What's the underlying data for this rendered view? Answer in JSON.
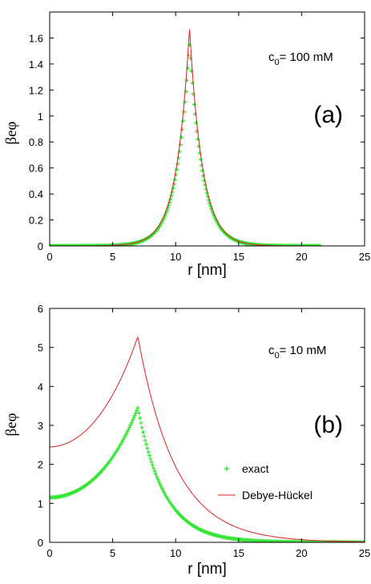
{
  "chart_data": [
    {
      "type": "line",
      "panel_label": "(a)",
      "annotation": {
        "prefix": "c",
        "subscript": "0",
        "text": "= 100 mM"
      },
      "xlabel": "r [nm]",
      "ylabel": "βeφ",
      "xlim": [
        0,
        25
      ],
      "ylim": [
        0,
        1.8
      ],
      "xticks": [
        0,
        5,
        10,
        15,
        20,
        25
      ],
      "xtick_labels": [
        "0",
        "5",
        "10",
        "15",
        "20",
        "25"
      ],
      "yticks": [
        0,
        0.2,
        0.4,
        0.6,
        0.8,
        1,
        1.2,
        1.4,
        1.6
      ],
      "ytick_labels": [
        "0",
        "0.2",
        "0.4",
        "0.6",
        "0.8",
        "1",
        "1.2",
        "1.4",
        "1.6"
      ],
      "series": [
        {
          "key": "exact",
          "model": "peak",
          "x_start": 0,
          "x_end": 21.5,
          "peak_x": 11.1,
          "peak_y": 1.56,
          "left_length": 1.02,
          "right_length": 1.02,
          "color": "#33e633",
          "marker": "+"
        },
        {
          "key": "debye_huckel",
          "model": "peak",
          "x_start": 0,
          "x_end": 21.5,
          "peak_x": 11.1,
          "peak_y": 1.68,
          "left_length": 1.02,
          "right_length": 1.02,
          "color": "#dd2222",
          "marker": "line"
        }
      ]
    },
    {
      "type": "line",
      "panel_label": "(b)",
      "annotation": {
        "prefix": "c",
        "subscript": "0",
        "text": "= 10 mM"
      },
      "xlabel": "r [nm]",
      "ylabel": "βeφ",
      "xlim": [
        0,
        25
      ],
      "ylim": [
        0,
        6
      ],
      "xticks": [
        0,
        5,
        10,
        15,
        20,
        25
      ],
      "xtick_labels": [
        "0",
        "5",
        "10",
        "15",
        "20",
        "25"
      ],
      "yticks": [
        0,
        1,
        2,
        3,
        4,
        5,
        6
      ],
      "ytick_labels": [
        "0",
        "1",
        "2",
        "3",
        "4",
        "5",
        "6"
      ],
      "legend": {
        "position": "right",
        "entries": [
          {
            "name": "exact",
            "key": "exact"
          },
          {
            "name": "Debye-Hückel",
            "key": "debye_huckel"
          }
        ]
      },
      "series": [
        {
          "name": "exact",
          "key": "exact",
          "model": "cosh",
          "x_start": 0,
          "x_end": 25,
          "peak_x": 7.0,
          "y_at_0": 1.15,
          "peak_y": 3.45,
          "right_length": 2.1,
          "color": "#33e633",
          "marker": "+"
        },
        {
          "name": "Debye-Hückel",
          "key": "debye_huckel",
          "model": "cosh",
          "x_start": 0,
          "x_end": 25,
          "peak_x": 7.0,
          "y_at_0": 2.45,
          "peak_y": 5.28,
          "right_length": 3.0,
          "color": "#dd2222",
          "marker": "line"
        }
      ]
    }
  ]
}
